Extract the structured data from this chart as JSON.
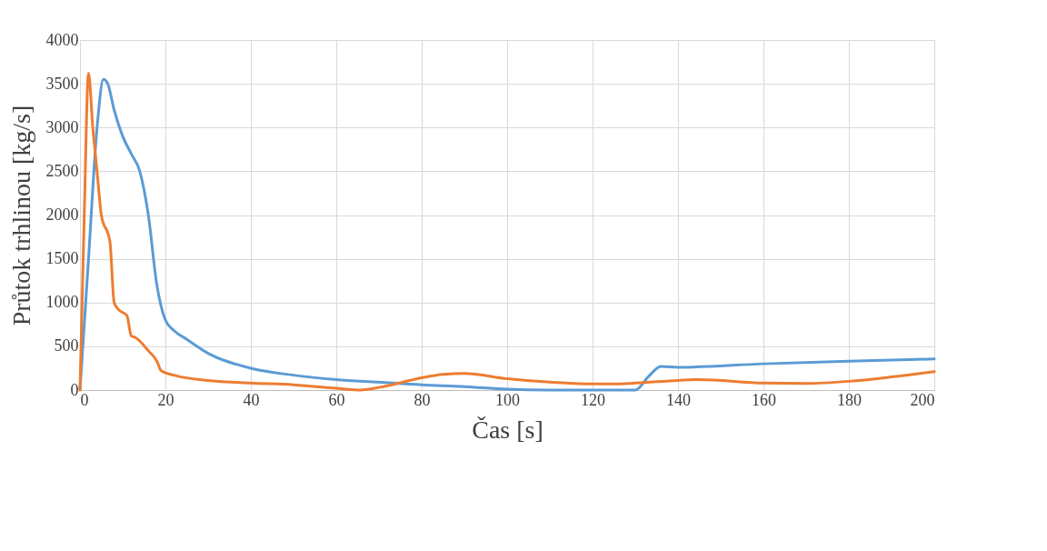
{
  "chart_data": {
    "type": "line",
    "xlabel": "Čas [s]",
    "ylabel": "Průtok trhlinou [kg/s]",
    "xlim": [
      0,
      200
    ],
    "xticks": [
      0,
      20,
      40,
      60,
      80,
      100,
      120,
      140,
      160,
      180,
      200
    ],
    "ylim": [
      0,
      4000
    ],
    "yticks": [
      0,
      500,
      1000,
      1500,
      2000,
      2500,
      3000,
      3500,
      4000
    ],
    "grid": true,
    "marker": "none",
    "line_style": "solid",
    "series": [
      {
        "color": "#5b9bd5",
        "x": [
          0,
          2,
          4,
          5.5,
          6.5,
          8,
          10,
          12,
          14,
          16,
          18,
          20,
          22,
          25,
          30,
          40,
          50,
          60,
          70,
          80,
          90,
          100,
          110,
          120,
          126,
          130,
          133,
          136,
          140,
          160,
          180,
          200
        ],
        "values": [
          0,
          1500,
          3000,
          3550,
          3500,
          3200,
          2900,
          2700,
          2500,
          2000,
          1200,
          800,
          680,
          580,
          420,
          250,
          170,
          120,
          90,
          60,
          40,
          10,
          0,
          0,
          0,
          0,
          150,
          270,
          260,
          300,
          330,
          355
        ]
      },
      {
        "color": "#ed7d31",
        "x": [
          0,
          1,
          2,
          3,
          4,
          5,
          7,
          8,
          9,
          11,
          12,
          13,
          16,
          18,
          19,
          22,
          30,
          40,
          50,
          60,
          65,
          70,
          80,
          85,
          90,
          100,
          110,
          120,
          125,
          130,
          140,
          145,
          160,
          170,
          180,
          190,
          200
        ],
        "values": [
          0,
          2000,
          3620,
          3000,
          2500,
          2000,
          1700,
          1000,
          920,
          850,
          620,
          600,
          450,
          330,
          220,
          170,
          110,
          80,
          60,
          20,
          0,
          30,
          140,
          180,
          190,
          130,
          90,
          70,
          70,
          80,
          110,
          120,
          80,
          75,
          100,
          150,
          210
        ]
      }
    ]
  }
}
